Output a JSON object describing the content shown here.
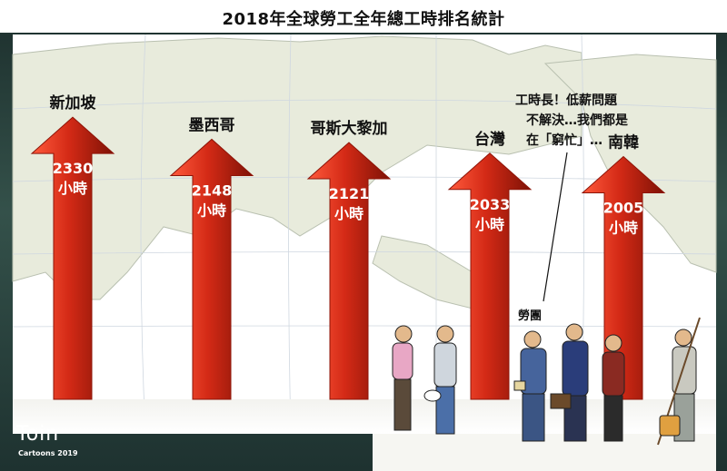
{
  "chart_data": {
    "type": "bar",
    "title": "2018年全球勞工全年總工時排名統計",
    "categories": [
      "新加坡",
      "墨西哥",
      "哥斯大黎加",
      "台灣",
      "南韓"
    ],
    "values": [
      2330,
      2148,
      2121,
      2033,
      2005
    ],
    "value_labels": [
      "2330",
      "2148",
      "2121",
      "2033",
      "2005"
    ],
    "unit": "小時",
    "colors": {
      "bar": "#d42a16",
      "bar_shade": "#8d1408",
      "map_land": "#e9ecdd",
      "map_sea": "#ffffff"
    }
  },
  "annotations": {
    "speech_bubble": [
      "工時長！低薪問題",
      "不解決…我們都是",
      "在「窮忙」…"
    ],
    "group_label": "勞團"
  },
  "credits": {
    "name": "Toin",
    "sub": "Cartoons 2019"
  },
  "icons": [
    "worker-figure",
    "briefcase-figure",
    "sweeper-figure"
  ]
}
